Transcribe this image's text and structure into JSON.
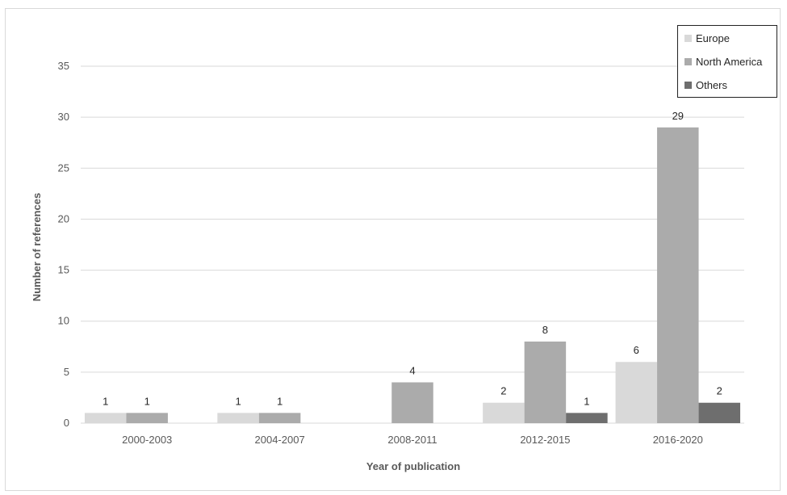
{
  "chart_data": {
    "type": "bar",
    "title": "",
    "xlabel": "Year of publication",
    "ylabel": "Number of references",
    "categories": [
      "2000-2003",
      "2004-2007",
      "2008-2011",
      "2012-2015",
      "2016-2020"
    ],
    "series": [
      {
        "name": "Europe",
        "values": [
          1,
          1,
          0,
          2,
          6
        ],
        "color": "#d9d9d9"
      },
      {
        "name": "North America",
        "values": [
          1,
          1,
          4,
          8,
          29
        ],
        "color": "#ababab"
      },
      {
        "name": "Others",
        "values": [
          0,
          0,
          0,
          1,
          2
        ],
        "color": "#6e6e6e"
      }
    ],
    "data_labels": [
      [
        "1",
        "1",
        "",
        "2",
        "6"
      ],
      [
        "1",
        "1",
        "4",
        "8",
        "29"
      ],
      [
        "",
        "",
        "",
        "1",
        "2"
      ]
    ],
    "ylim": [
      0,
      35
    ],
    "yticks": [
      0,
      5,
      10,
      15,
      20,
      25,
      30,
      35
    ],
    "grid": true,
    "legend_position": "top-right"
  }
}
